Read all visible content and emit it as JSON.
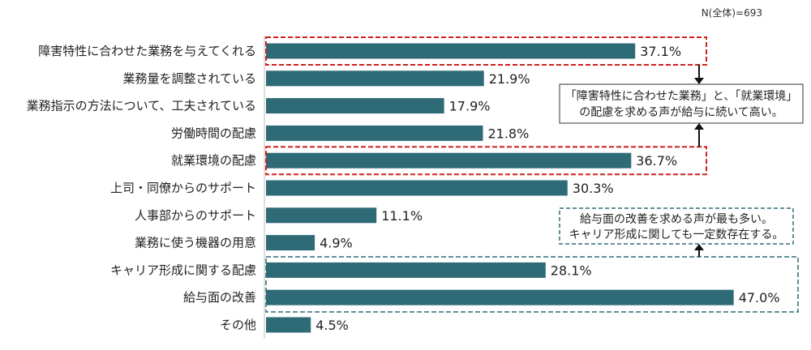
{
  "sample_note": "N(全体)=693",
  "chart_data": {
    "type": "bar",
    "orientation": "horizontal",
    "categories": [
      "障害特性に合わせた業務を与えてくれる",
      "業務量を調整されている",
      "業務指示の方法について、工夫されている",
      "労働時間の配慮",
      "就業環境の配慮",
      "上司・同僚からのサポート",
      "人事部からのサポート",
      "業務に使う機器の用意",
      "キャリア形成に関する配慮",
      "給与面の改善",
      "その他"
    ],
    "values": [
      37.1,
      21.9,
      17.9,
      21.8,
      36.7,
      30.3,
      11.1,
      4.9,
      28.1,
      47.0,
      4.5
    ],
    "value_labels": [
      "37.1%",
      "21.9%",
      "17.9%",
      "21.8%",
      "36.7%",
      "30.3%",
      "11.1%",
      "4.9%",
      "28.1%",
      "47.0%",
      "4.5%"
    ],
    "unit": "%",
    "xlim": [
      0,
      50
    ],
    "grid": false,
    "bar_color": "#2e6b77"
  },
  "callouts": [
    {
      "lines": [
        "「障害特性に合わせた業務」と、「就業環境」",
        "の配慮を求める声が給与に続いて高い。"
      ],
      "style": "solid",
      "highlight_color": "#d0211c",
      "highlight_categories": [
        0,
        4
      ]
    },
    {
      "lines": [
        "給与面の改善を求める声が最も多い。",
        "キャリア形成に関しても一定数存在する。"
      ],
      "style": "dashed",
      "highlight_color": "#2e6b77",
      "highlight_categories": [
        8,
        9
      ]
    }
  ]
}
